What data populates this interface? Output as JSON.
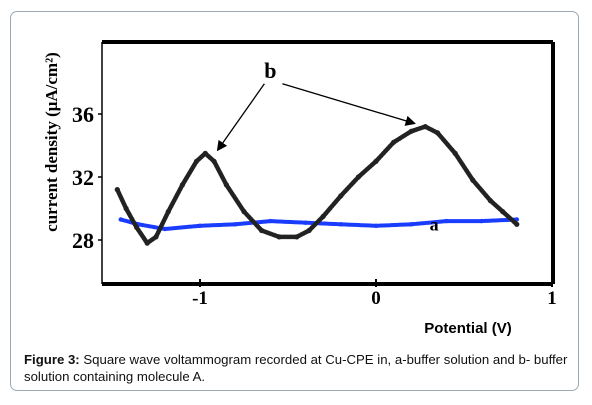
{
  "caption": {
    "label": "Figure 3:",
    "text": " Square wave voltammogram recorded at Cu-CPE in, a-buffer solution and b- buffer solution containing molecule A."
  },
  "chart_data": {
    "type": "line",
    "xlabel": "Potential (V)",
    "ylabel": "current density (μA/cm²)",
    "xlim": [
      -1.55,
      1.0
    ],
    "ylim": [
      26,
      40
    ],
    "x_ticks": [
      -1,
      0,
      1
    ],
    "x_tick_labels": [
      "-1",
      "0",
      "1"
    ],
    "y_ticks": [
      28,
      32,
      36
    ],
    "y_tick_labels": [
      "28",
      "32",
      "36"
    ],
    "grid": false,
    "legend": "none",
    "series": [
      {
        "name": "a",
        "color": "#1a3cff",
        "x": [
          -1.45,
          -1.35,
          -1.2,
          -1.0,
          -0.8,
          -0.6,
          -0.4,
          -0.2,
          0.0,
          0.2,
          0.4,
          0.6,
          0.8
        ],
        "y": [
          29.3,
          29.0,
          28.7,
          28.9,
          29.0,
          29.2,
          29.1,
          29.0,
          28.9,
          29.0,
          29.2,
          29.2,
          29.3
        ]
      },
      {
        "name": "b",
        "color": "#222222",
        "x": [
          -1.47,
          -1.42,
          -1.36,
          -1.3,
          -1.25,
          -1.18,
          -1.1,
          -1.02,
          -0.97,
          -0.92,
          -0.85,
          -0.75,
          -0.65,
          -0.55,
          -0.45,
          -0.38,
          -0.3,
          -0.2,
          -0.1,
          0.0,
          0.1,
          0.2,
          0.28,
          0.35,
          0.45,
          0.55,
          0.65,
          0.72,
          0.8
        ],
        "y": [
          31.2,
          30.0,
          28.8,
          27.8,
          28.2,
          29.8,
          31.5,
          33.0,
          33.5,
          33.0,
          31.5,
          29.8,
          28.6,
          28.2,
          28.2,
          28.6,
          29.5,
          30.8,
          32.0,
          33.0,
          34.2,
          34.9,
          35.2,
          34.8,
          33.5,
          31.8,
          30.5,
          29.8,
          29.0
        ]
      }
    ],
    "annotations": [
      {
        "text": "b",
        "at": [
          -0.6,
          38.3
        ],
        "arrows_to": [
          [
            -0.9,
            33.7
          ],
          [
            0.22,
            35.4
          ]
        ]
      },
      {
        "text": "a",
        "at": [
          0.33,
          28.6
        ]
      }
    ]
  }
}
